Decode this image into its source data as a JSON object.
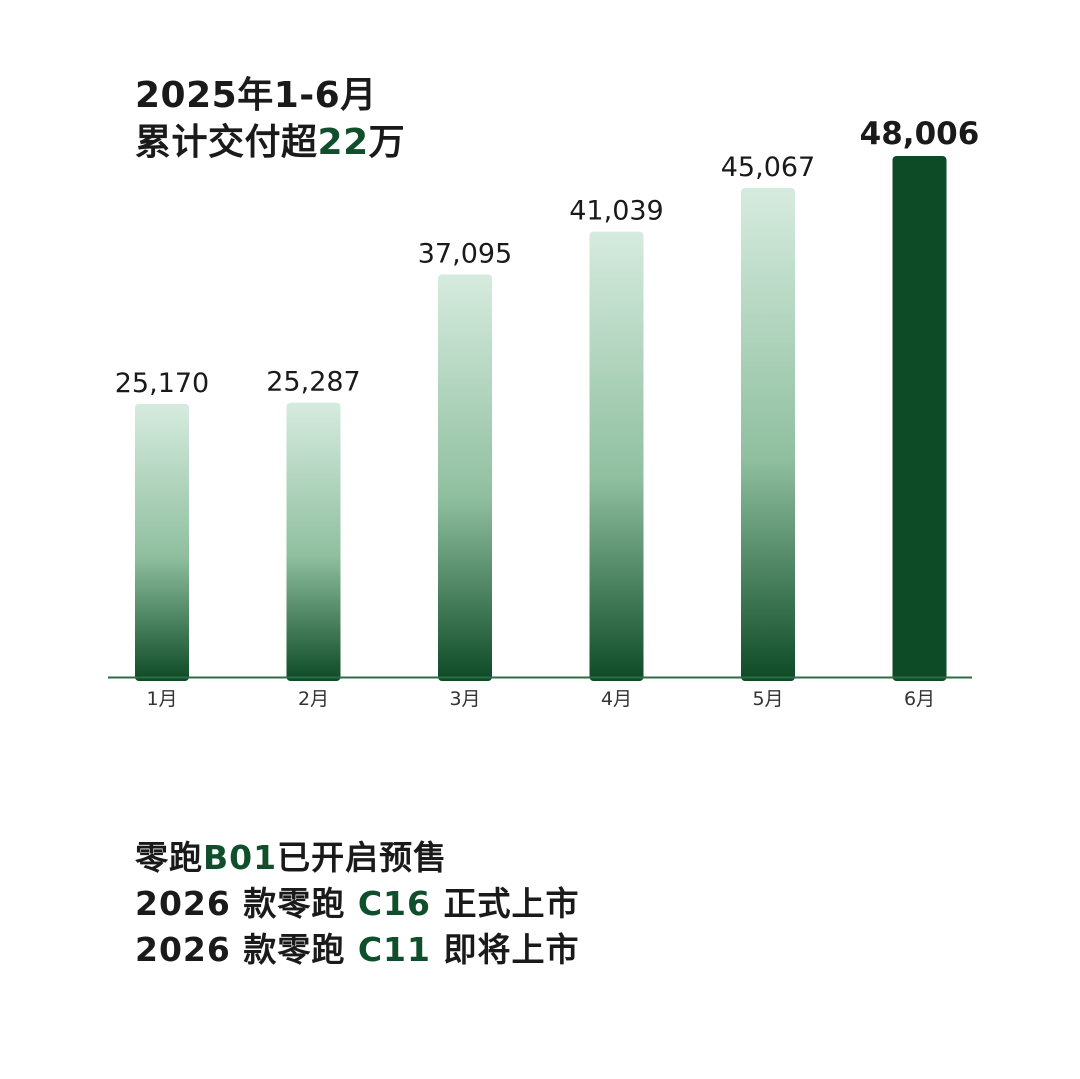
{
  "headline": {
    "line1": "2025年1-6月",
    "line2_prefix": "累计交付超",
    "line2_number": "22",
    "line2_suffix": "万"
  },
  "colors": {
    "accent": "#0f4f2b",
    "bar_light": "#d6ebdf",
    "bar_dark": "#0d4a26",
    "axis": "#2e6b45"
  },
  "chart_data": {
    "type": "bar",
    "categories": [
      "1月",
      "2月",
      "3月",
      "4月",
      "5月",
      "6月"
    ],
    "values": [
      25170,
      25287,
      37095,
      41039,
      45067,
      48006
    ],
    "value_labels": [
      "25,170",
      "25,287",
      "37,095",
      "41,039",
      "45,067",
      "48,006"
    ],
    "highlight_index": 5,
    "title": "",
    "xlabel": "",
    "ylabel": ""
  },
  "bullets": [
    {
      "prefix": "零跑",
      "model": "B01",
      "suffix": "已开启预售"
    },
    {
      "prefix": "2026 款零跑 ",
      "model": "C16",
      "suffix": " 正式上市"
    },
    {
      "prefix": "2026 款零跑 ",
      "model": "C11",
      "suffix": " 即将上市"
    }
  ]
}
